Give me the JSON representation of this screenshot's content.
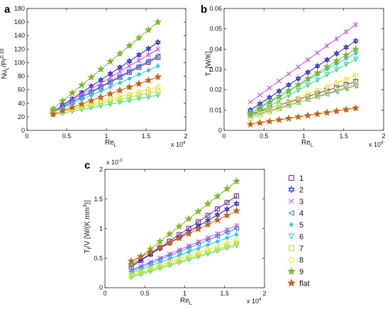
{
  "figure": {
    "legend": {
      "placement": "right",
      "entries": [
        {
          "label": "1",
          "color": "#7a2a9a",
          "marker": "square"
        },
        {
          "label": "2",
          "color": "#2020c8",
          "marker": "star6"
        },
        {
          "label": "3",
          "color": "#cc55dd",
          "marker": "x"
        },
        {
          "label": "4",
          "color": "#3f7fe0",
          "marker": "triangle-left"
        },
        {
          "label": "5",
          "color": "#27c6e6",
          "marker": "asterisk"
        },
        {
          "label": "6",
          "color": "#3cd78a",
          "marker": "triangle-down"
        },
        {
          "label": "7",
          "color": "#b8e040",
          "marker": "square"
        },
        {
          "label": "8",
          "color": "#e6e626",
          "marker": "circle"
        },
        {
          "label": "9",
          "color": "#7eb82a",
          "marker": "star5"
        },
        {
          "label": "flat",
          "color": "#c46418",
          "marker": "star5-filled"
        }
      ]
    }
  },
  "chart_data": [
    {
      "panel": "a",
      "type": "scatter",
      "xlabel_main": "Re",
      "xlabel_sub": "L",
      "ylabel": "Nu_L/Pr^0.33",
      "x_exponent": "x 10",
      "x_exponent_power": "4",
      "xlim": [
        0,
        2
      ],
      "ylim": [
        0,
        180
      ],
      "xticks": [
        0,
        0.5,
        1,
        1.5,
        2
      ],
      "xtick_labels": [
        "0",
        "0.5",
        "1",
        "1.5",
        "2"
      ],
      "yticks": [
        0,
        20,
        40,
        60,
        80,
        100,
        120,
        140,
        160,
        180
      ],
      "ytick_labels": [
        "0",
        "20",
        "40",
        "60",
        "80",
        "100",
        "120",
        "140",
        "160",
        "180"
      ],
      "x": [
        0.33,
        0.45,
        0.57,
        0.69,
        0.81,
        0.93,
        1.05,
        1.17,
        1.29,
        1.41,
        1.53,
        1.65
      ],
      "series": [
        {
          "name": "1",
          "y0": 27,
          "y1": 108
        },
        {
          "name": "2",
          "y0": 28,
          "y1": 130
        },
        {
          "name": "3",
          "y0": 28,
          "y1": 120
        },
        {
          "name": "4",
          "y0": 27,
          "y1": 110
        },
        {
          "name": "5",
          "y0": 27,
          "y1": 95
        },
        {
          "name": "6",
          "y0": 23,
          "y1": 52
        },
        {
          "name": "7",
          "y0": 25,
          "y1": 58
        },
        {
          "name": "8",
          "y0": 25,
          "y1": 64
        },
        {
          "name": "9",
          "y0": 32,
          "y1": 160
        },
        {
          "name": "flat",
          "y0": 24,
          "y1": 79
        }
      ]
    },
    {
      "panel": "b",
      "type": "scatter",
      "xlabel_main": "Re",
      "xlabel_sub": "L",
      "ylabel": "T_f [W/K]",
      "x_exponent": "x 10",
      "x_exponent_power": "4",
      "xlim": [
        0,
        2
      ],
      "ylim": [
        0,
        0.06
      ],
      "xticks": [
        0,
        0.5,
        1,
        1.5,
        2
      ],
      "xtick_labels": [
        "0",
        "0.5",
        "1",
        "1.5",
        "2"
      ],
      "yticks": [
        0,
        0.01,
        0.02,
        0.03,
        0.04,
        0.05,
        0.06
      ],
      "ytick_labels": [
        "0",
        "0.01",
        "0.02",
        "0.03",
        "0.04",
        "0.05",
        "0.06"
      ],
      "x": [
        0.33,
        0.45,
        0.57,
        0.69,
        0.81,
        0.93,
        1.05,
        1.17,
        1.29,
        1.41,
        1.53,
        1.65
      ],
      "series": [
        {
          "name": "1",
          "y0": 0.008,
          "y1": 0.024
        },
        {
          "name": "2",
          "y0": 0.01,
          "y1": 0.044
        },
        {
          "name": "3",
          "y0": 0.014,
          "y1": 0.052
        },
        {
          "name": "4",
          "y0": 0.007,
          "y1": 0.022
        },
        {
          "name": "5",
          "y0": 0.009,
          "y1": 0.038
        },
        {
          "name": "6",
          "y0": 0.007,
          "y1": 0.035
        },
        {
          "name": "7",
          "y0": 0.006,
          "y1": 0.023
        },
        {
          "name": "8",
          "y0": 0.007,
          "y1": 0.027
        },
        {
          "name": "9",
          "y0": 0.008,
          "y1": 0.04
        },
        {
          "name": "flat",
          "y0": 0.003,
          "y1": 0.011
        }
      ]
    },
    {
      "panel": "c",
      "type": "scatter",
      "xlabel_main": "Re",
      "xlabel_sub": "L",
      "ylabel": "T_f/V [W/(K mm^3)]",
      "y_exponent": "x 10",
      "y_exponent_power": "-3",
      "x_exponent": "x 10",
      "x_exponent_power": "4",
      "xlim": [
        0,
        2
      ],
      "ylim": [
        0,
        2
      ],
      "xticks": [
        0,
        0.5,
        1,
        1.5,
        2
      ],
      "xtick_labels": [
        "0",
        "0.5",
        "1",
        "1.5",
        "2"
      ],
      "yticks": [
        0,
        0.5,
        1,
        1.5,
        2
      ],
      "ytick_labels": [
        "0",
        "0.5",
        "1",
        "1.5",
        "2"
      ],
      "x": [
        0.33,
        0.45,
        0.57,
        0.69,
        0.81,
        0.93,
        1.05,
        1.17,
        1.29,
        1.41,
        1.53,
        1.65
      ],
      "series": [
        {
          "name": "1",
          "y0": 0.35,
          "y1": 1.55
        },
        {
          "name": "2",
          "y0": 0.38,
          "y1": 1.42
        },
        {
          "name": "3",
          "y0": 0.3,
          "y1": 1.05
        },
        {
          "name": "4",
          "y0": 0.28,
          "y1": 1.0
        },
        {
          "name": "5",
          "y0": 0.25,
          "y1": 0.9
        },
        {
          "name": "6",
          "y0": 0.18,
          "y1": 0.72
        },
        {
          "name": "7",
          "y0": 0.2,
          "y1": 0.75
        },
        {
          "name": "8",
          "y0": 0.22,
          "y1": 0.8
        },
        {
          "name": "9",
          "y0": 0.4,
          "y1": 1.8
        },
        {
          "name": "flat",
          "y0": 0.45,
          "y1": 1.3
        }
      ]
    }
  ]
}
